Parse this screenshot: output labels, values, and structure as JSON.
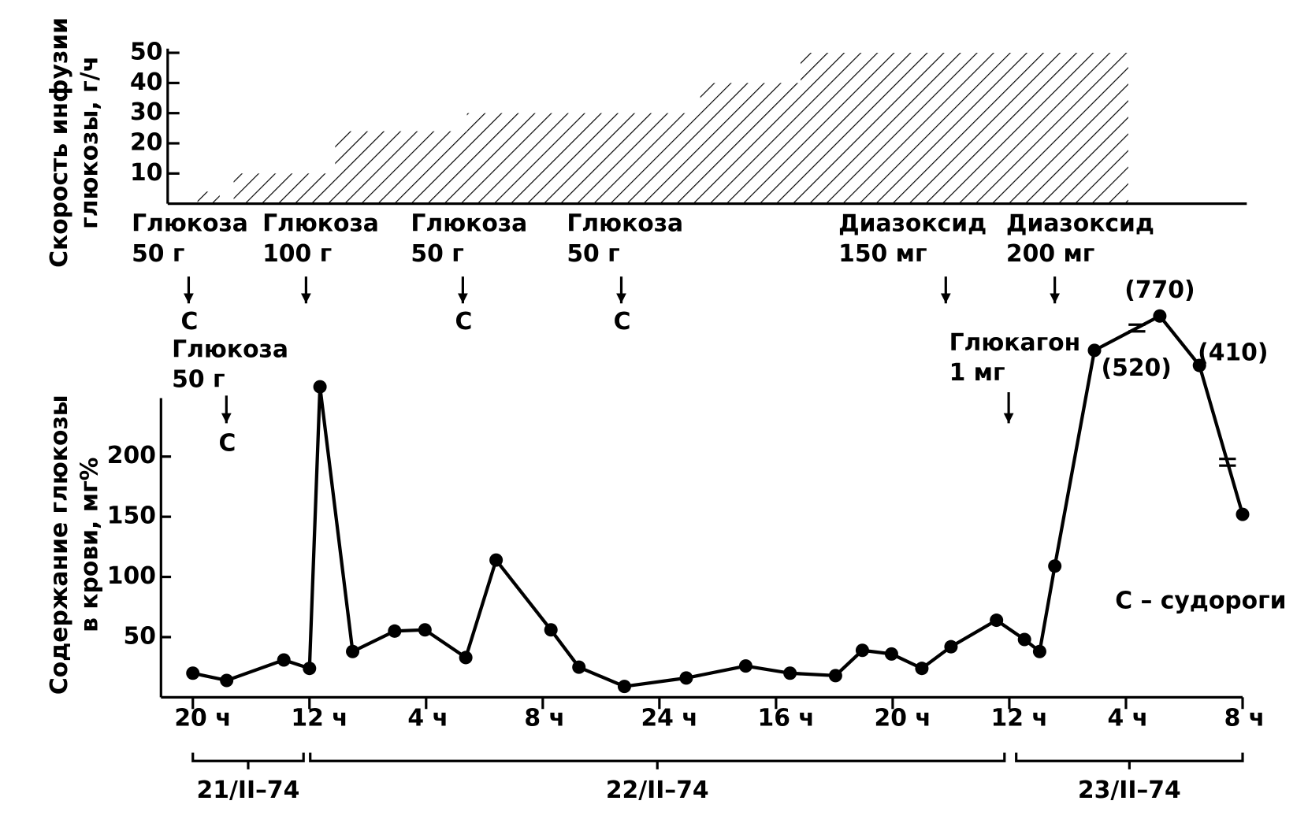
{
  "chart_data": [
    {
      "type": "step-area",
      "y_label": [
        "Скорость инфузии",
        "глюкозы, г/ч"
      ],
      "x_start": [
        0.04,
        0.35,
        1.22,
        2.35,
        4.35,
        5.21
      ],
      "x_end": [
        0.23,
        1.22,
        2.35,
        4.35,
        5.21,
        8.02
      ],
      "values": [
        4,
        10,
        24,
        30,
        40,
        50
      ],
      "xlim": [
        0,
        9
      ],
      "ylim": [
        0,
        50
      ],
      "yticks": [
        10,
        20,
        30,
        40,
        50
      ],
      "hatch": true
    },
    {
      "type": "line",
      "y_label": [
        "Содержание глюкозы",
        "в крови, мг%"
      ],
      "x": [
        0,
        0.29,
        0.78,
        1.0,
        1.09,
        1.37,
        1.73,
        1.99,
        2.34,
        2.6,
        3.07,
        3.31,
        3.7,
        4.23,
        4.74,
        5.12,
        5.51,
        5.74,
        5.99,
        6.25,
        6.5,
        6.89,
        7.13,
        7.26,
        7.39,
        7.73,
        8.29,
        8.63,
        9.0
      ],
      "values": [
        20,
        14,
        31,
        24,
        258,
        38,
        55,
        56,
        33,
        114,
        56,
        25,
        9,
        16,
        26,
        20,
        18,
        39,
        36,
        24,
        42,
        64,
        48,
        38,
        109,
        520,
        770,
        410,
        152
      ],
      "value_labels": [
        null,
        null,
        null,
        null,
        null,
        null,
        null,
        null,
        null,
        null,
        null,
        null,
        null,
        null,
        null,
        null,
        null,
        null,
        null,
        null,
        null,
        null,
        null,
        null,
        null,
        "(520)",
        "(770)",
        "(410)",
        null
      ],
      "xlim": [
        0,
        9
      ],
      "xticks": [
        {
          "value": 0,
          "label": "20 ч"
        },
        {
          "value": 1,
          "label": "12 ч"
        },
        {
          "value": 2,
          "label": "4 ч"
        },
        {
          "value": 3,
          "label": "8 ч"
        },
        {
          "value": 4,
          "label": "24 ч"
        },
        {
          "value": 5,
          "label": "16 ч"
        },
        {
          "value": 6,
          "label": "20 ч"
        },
        {
          "value": 7,
          "label": "12 ч"
        },
        {
          "value": 8,
          "label": "4 ч"
        },
        {
          "value": 9,
          "label": "8 ч"
        }
      ],
      "ylim": [
        0,
        250
      ],
      "yticks": [
        50,
        100,
        150,
        200
      ],
      "dates": [
        "21/II–74",
        "22/II–74",
        "23/II–74"
      ],
      "annotations": [
        {
          "lines": [
            "Глюкоза",
            "50 г"
          ],
          "mark": "С"
        },
        {
          "lines": [
            "Глюкоза",
            "100 г"
          ]
        },
        {
          "lines": [
            "Глюкоза",
            "50 г"
          ],
          "mark": "С"
        },
        {
          "lines": [
            "Глюкоза",
            "50 г"
          ],
          "mark": "С"
        },
        {
          "lines": [
            "Диазоксид",
            "150 мг"
          ]
        },
        {
          "lines": [
            "Диазоксид",
            "200 мг"
          ]
        },
        {
          "lines": [
            "Глюкоза",
            "50 г"
          ],
          "mark": "С"
        },
        {
          "lines": [
            "Глюкагон",
            "1 мг"
          ]
        }
      ],
      "note": "С – судороги"
    }
  ]
}
